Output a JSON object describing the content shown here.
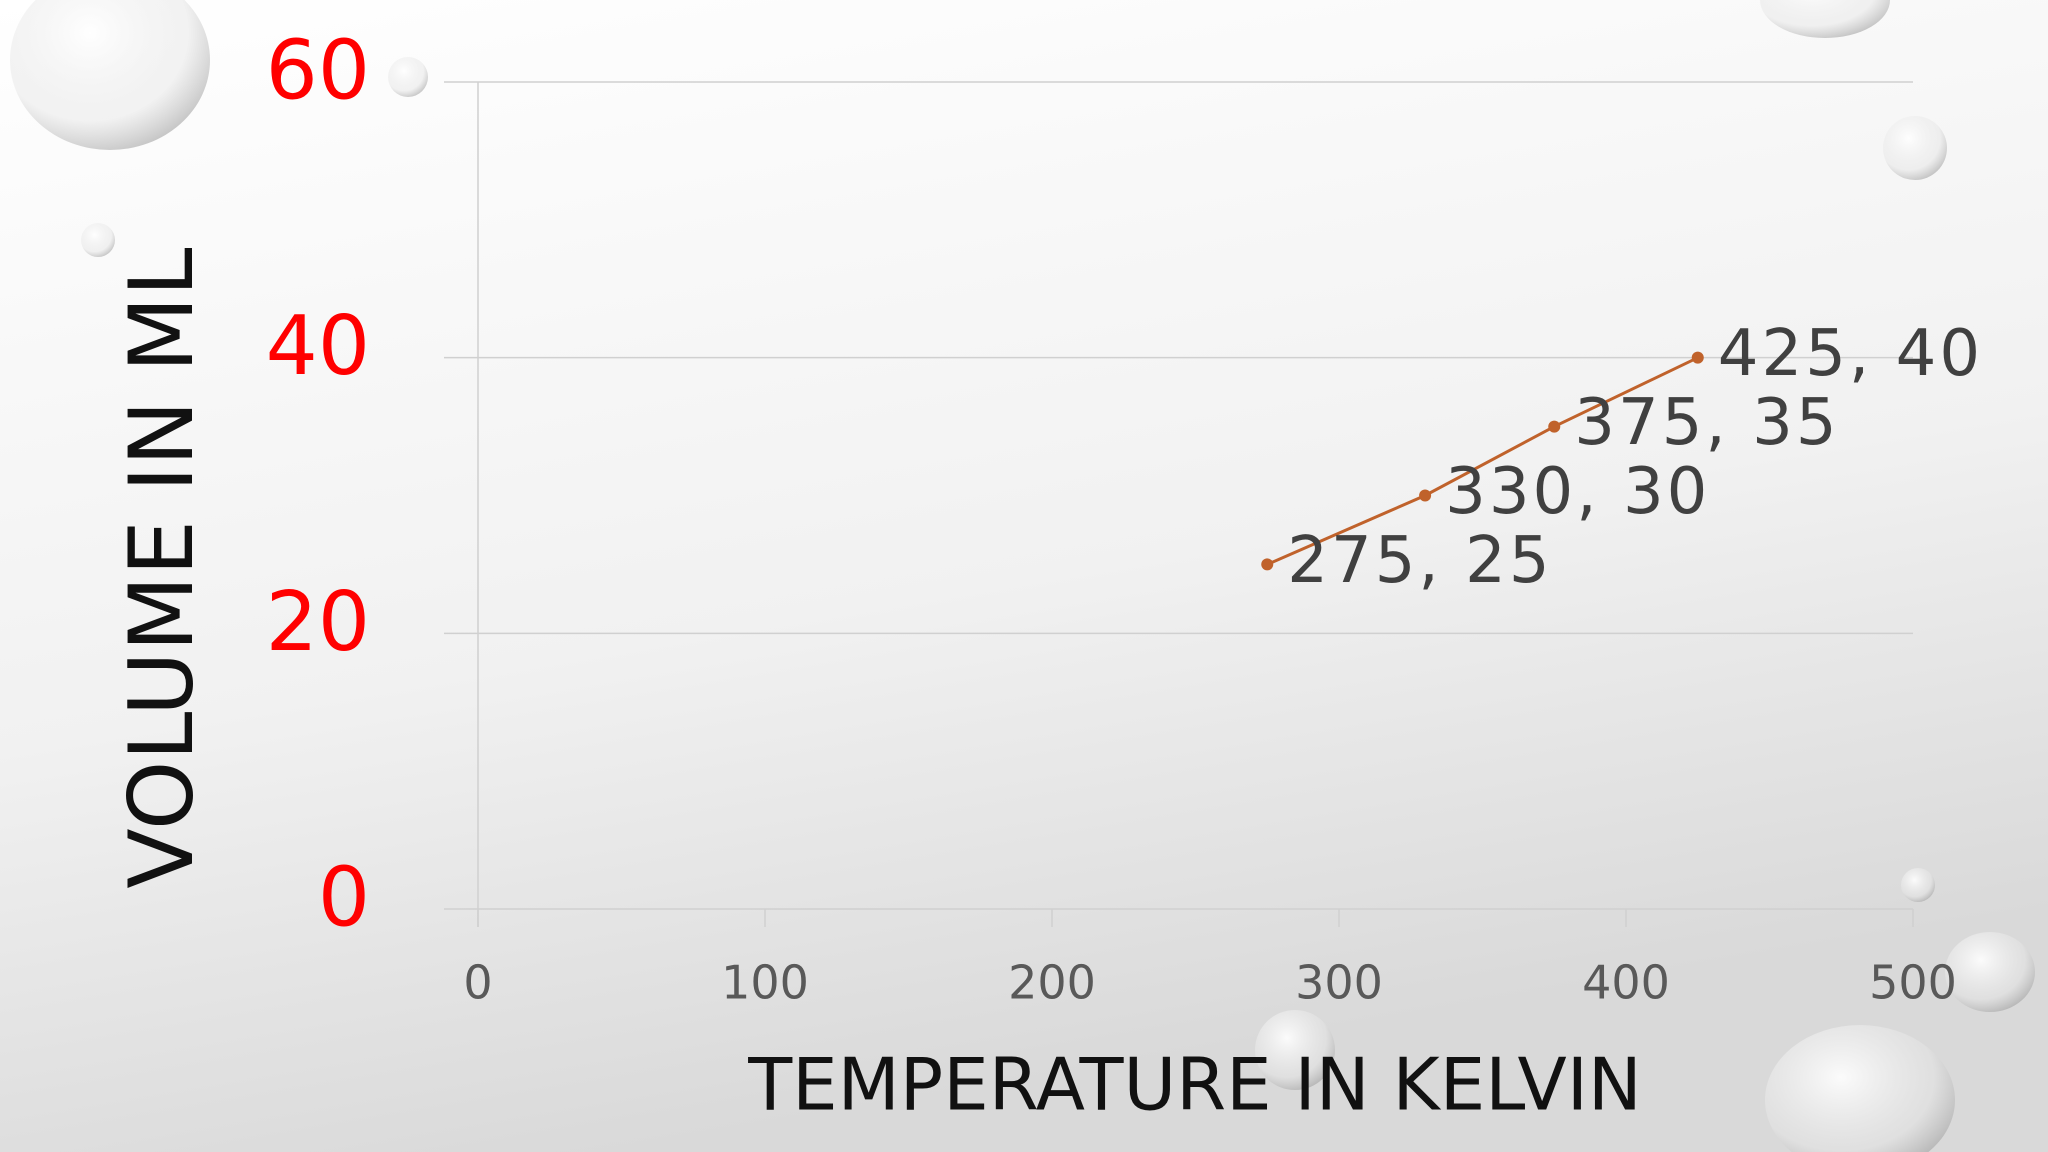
{
  "chart_data": {
    "type": "line",
    "x": [
      275,
      330,
      375,
      425
    ],
    "values": [
      25,
      30,
      35,
      40
    ],
    "value_labels": [
      "275, 25",
      "330, 30",
      "375, 35",
      "425, 40"
    ],
    "color": "#c0622b",
    "xlabel": "TEMPERATURE IN KELVIN",
    "ylabel": "VOLUME IN ML",
    "xlim": [
      0,
      500
    ],
    "xticks": [
      0,
      100,
      200,
      300,
      400,
      500
    ],
    "ylim": [
      0,
      60
    ],
    "yticks": [
      0,
      20,
      40,
      60
    ],
    "ytick_color": "#ff0000",
    "grid": true
  }
}
